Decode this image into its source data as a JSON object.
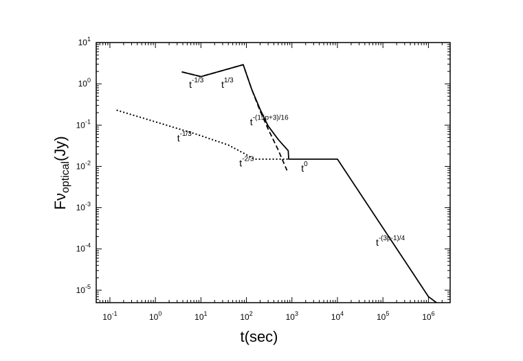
{
  "chart_data": {
    "type": "line",
    "xscale": "log",
    "yscale": "log",
    "xlim": [
      0.05,
      3000000
    ],
    "ylim": [
      5e-06,
      10
    ],
    "grid": false,
    "legend": "none",
    "xlabel": "t(sec)",
    "ylabel": "Fν",
    "ylabel_subscript": "optical",
    "ylabel_unit": "(Jy)",
    "x_ticks": [
      {
        "value": 0.1,
        "base": "10",
        "exp": "-1"
      },
      {
        "value": 1,
        "base": "10",
        "exp": "0"
      },
      {
        "value": 10,
        "base": "10",
        "exp": "1"
      },
      {
        "value": 100,
        "base": "10",
        "exp": "2"
      },
      {
        "value": 1000,
        "base": "10",
        "exp": "3"
      },
      {
        "value": 10000,
        "base": "10",
        "exp": "4"
      },
      {
        "value": 100000,
        "base": "10",
        "exp": "5"
      },
      {
        "value": 1000000,
        "base": "10",
        "exp": "6"
      }
    ],
    "y_ticks": [
      {
        "value": 1e-05,
        "base": "10",
        "exp": "-5"
      },
      {
        "value": 0.0001,
        "base": "10",
        "exp": "-4"
      },
      {
        "value": 0.001,
        "base": "10",
        "exp": "-3"
      },
      {
        "value": 0.01,
        "base": "10",
        "exp": "-2"
      },
      {
        "value": 0.1,
        "base": "10",
        "exp": "-1"
      },
      {
        "value": 1,
        "base": "10",
        "exp": "0"
      },
      {
        "value": 10,
        "base": "10",
        "exp": "1"
      }
    ],
    "series": [
      {
        "style": "solid",
        "color": "#000000",
        "points": [
          [
            3.8,
            1.95
          ],
          [
            10,
            1.5
          ],
          [
            85,
            2.9
          ],
          [
            130,
            0.75
          ],
          [
            200,
            0.24
          ],
          [
            300,
            0.095
          ],
          [
            500,
            0.045
          ],
          [
            830,
            0.024
          ],
          [
            850,
            0.015
          ],
          [
            10000,
            0.015
          ],
          [
            1000000,
            7e-06
          ],
          [
            1500000,
            5e-06
          ]
        ]
      },
      {
        "style": "dashed",
        "color": "#000000",
        "points": [
          [
            3.8,
            1.95
          ],
          [
            10,
            1.5
          ],
          [
            85,
            2.9
          ],
          [
            130,
            0.75
          ],
          [
            200,
            0.22
          ],
          [
            300,
            0.08
          ],
          [
            500,
            0.025
          ],
          [
            780,
            0.008
          ]
        ]
      },
      {
        "style": "dotted",
        "color": "#000000",
        "points": [
          [
            0.14,
            0.23
          ],
          [
            1,
            0.12
          ],
          [
            8,
            0.06
          ],
          [
            40,
            0.033
          ],
          [
            80,
            0.022
          ],
          [
            150,
            0.015
          ],
          [
            850,
            0.015
          ]
        ]
      }
    ],
    "annotations": [
      {
        "base": "t",
        "exp": "-1/3",
        "x": 5.5,
        "y": 0.8
      },
      {
        "base": "t",
        "exp": "1/3",
        "x": 28,
        "y": 0.8
      },
      {
        "base": "t",
        "exp": "-(15p+3)/16",
        "x": 120,
        "y": 0.1
      },
      {
        "base": "t",
        "exp": "-1/3",
        "x": 3,
        "y": 0.04
      },
      {
        "base": "t",
        "exp": "-2/3",
        "x": 70,
        "y": 0.01
      },
      {
        "base": "t",
        "exp": "0",
        "x": 1600,
        "y": 0.0075
      },
      {
        "base": "t",
        "exp": "-(3p-1)/4",
        "x": 70000,
        "y": 0.00012
      }
    ]
  }
}
